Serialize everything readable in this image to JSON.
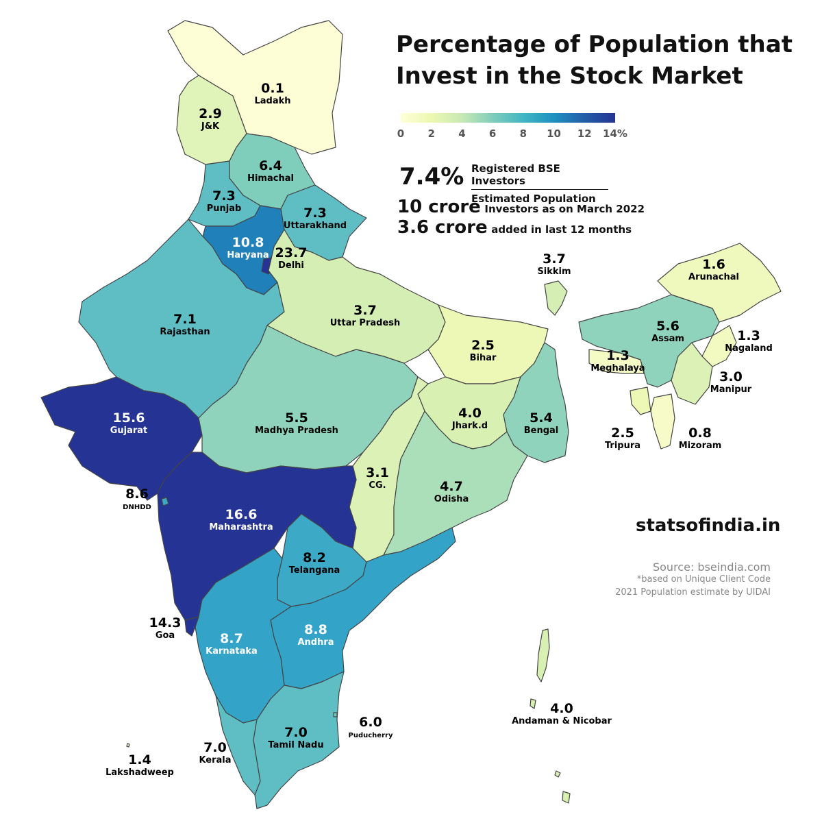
{
  "title_line1": "Percentage of Population that",
  "title_line2": "Invest in the Stock Market",
  "legend": {
    "ticks": [
      "0",
      "2",
      "4",
      "6",
      "8",
      "10",
      "12",
      "14%"
    ],
    "min": 0,
    "max": 14
  },
  "summary": {
    "national_pct": "7.4%",
    "numerator": "Registered BSE Investors",
    "denominator": "Estimated Population",
    "investors_big": "10 crore",
    "investors_small": "Investors as on March 2022",
    "added_big": "3.6 crore",
    "added_small": "added in last 12 months"
  },
  "brand": "statsofindia.in",
  "source": {
    "line1": "Source: bseindia.com",
    "line2": "*based on Unique Client Code",
    "line3": "2021 Population estimate by UIDAI"
  },
  "colors": {
    "ladakh": "#fdfed6",
    "jk": "#e0f3b8",
    "himachal": "#7fcdbb",
    "punjab": "#5fbdc4",
    "uttarakhand": "#5fbdc4",
    "haryana": "#1f80ba",
    "delhi": "#253494",
    "rajasthan": "#5fbdc4",
    "up": "#d4eeb3",
    "bihar": "#edf8b7",
    "gujarat": "#253494",
    "mp": "#8fd3bc",
    "jharkhand": "#d9f0b3",
    "bengal": "#8fd3bc",
    "chhattisgarh": "#dcf1b5",
    "odisha": "#aadfb9",
    "maharashtra": "#253494",
    "telangana": "#3ca9c6",
    "andhra": "#33a3c8",
    "karnataka": "#33a3c8",
    "goa": "#253494",
    "kerala": "#5fbdc4",
    "tamilnadu": "#5fbdc4",
    "sikkim": "#d4eeb3",
    "arunachal": "#f0f9bd",
    "assam": "#8fd3bc",
    "meghalaya": "#f5fbc4",
    "nagaland": "#f3fac1",
    "manipur": "#dcf1b5",
    "mizoram": "#f6fbc8",
    "tripura": "#edf8b7",
    "andaman": "#d9f0b3",
    "dnhdd": "#3ca9c6",
    "lakshadweep": "#f3fac1",
    "puducherry": "#72c7bf"
  },
  "states": [
    {
      "id": "ladakh",
      "value": "0.1",
      "name": "Ladakh",
      "pct": 0.1
    },
    {
      "id": "jk",
      "value": "2.9",
      "name": "J&K",
      "pct": 2.9
    },
    {
      "id": "himachal",
      "value": "6.4",
      "name": "Himachal",
      "pct": 6.4
    },
    {
      "id": "punjab",
      "value": "7.3",
      "name": "Punjab",
      "pct": 7.3
    },
    {
      "id": "uttarakhand",
      "value": "7.3",
      "name": "Uttarakhand",
      "pct": 7.3
    },
    {
      "id": "haryana",
      "value": "10.8",
      "name": "Haryana",
      "pct": 10.8
    },
    {
      "id": "delhi",
      "value": "23.7",
      "name": "Delhi",
      "pct": 23.7
    },
    {
      "id": "rajasthan",
      "value": "7.1",
      "name": "Rajasthan",
      "pct": 7.1
    },
    {
      "id": "up",
      "value": "3.7",
      "name": "Uttar Pradesh",
      "pct": 3.7
    },
    {
      "id": "bihar",
      "value": "2.5",
      "name": "Bihar",
      "pct": 2.5
    },
    {
      "id": "sikkim",
      "value": "3.7",
      "name": "Sikkim",
      "pct": 3.7
    },
    {
      "id": "arunachal",
      "value": "1.6",
      "name": "Arunachal",
      "pct": 1.6
    },
    {
      "id": "assam",
      "value": "5.6",
      "name": "Assam",
      "pct": 5.6
    },
    {
      "id": "nagaland",
      "value": "1.3",
      "name": "Nagaland",
      "pct": 1.3
    },
    {
      "id": "meghalaya",
      "value": "1.3",
      "name": "Meghalaya",
      "pct": 1.3
    },
    {
      "id": "manipur",
      "value": "3.0",
      "name": "Manipur",
      "pct": 3.0
    },
    {
      "id": "tripura",
      "value": "2.5",
      "name": "Tripura",
      "pct": 2.5
    },
    {
      "id": "mizoram",
      "value": "0.8",
      "name": "Mizoram",
      "pct": 0.8
    },
    {
      "id": "gujarat",
      "value": "15.6",
      "name": "Gujarat",
      "pct": 15.6
    },
    {
      "id": "mp",
      "value": "5.5",
      "name": "Madhya Pradesh",
      "pct": 5.5
    },
    {
      "id": "jharkhand",
      "value": "4.0",
      "name": "Jhark.d",
      "pct": 4.0
    },
    {
      "id": "bengal",
      "value": "5.4",
      "name": "Bengal",
      "pct": 5.4
    },
    {
      "id": "chhattisgarh",
      "value": "3.1",
      "name": "CG.",
      "pct": 3.1
    },
    {
      "id": "odisha",
      "value": "4.7",
      "name": "Odisha",
      "pct": 4.7
    },
    {
      "id": "dnhdd",
      "value": "8.6",
      "name": "DNHDD",
      "pct": 8.6
    },
    {
      "id": "maharashtra",
      "value": "16.6",
      "name": "Maharashtra",
      "pct": 16.6
    },
    {
      "id": "telangana",
      "value": "8.2",
      "name": "Telangana",
      "pct": 8.2
    },
    {
      "id": "goa",
      "value": "14.3",
      "name": "Goa",
      "pct": 14.3
    },
    {
      "id": "karnataka",
      "value": "8.7",
      "name": "Karnataka",
      "pct": 8.7
    },
    {
      "id": "andhra",
      "value": "8.8",
      "name": "Andhra",
      "pct": 8.8
    },
    {
      "id": "andaman",
      "value": "4.0",
      "name": "Andaman & Nicobar",
      "pct": 4.0
    },
    {
      "id": "puducherry",
      "value": "6.0",
      "name": "Puducherry",
      "pct": 6.0
    },
    {
      "id": "tamilnadu",
      "value": "7.0",
      "name": "Tamil Nadu",
      "pct": 7.0
    },
    {
      "id": "kerala",
      "value": "7.0",
      "name": "Kerala",
      "pct": 7.0
    },
    {
      "id": "lakshadweep",
      "value": "1.4",
      "name": "Lakshadweep",
      "pct": 1.4
    }
  ]
}
